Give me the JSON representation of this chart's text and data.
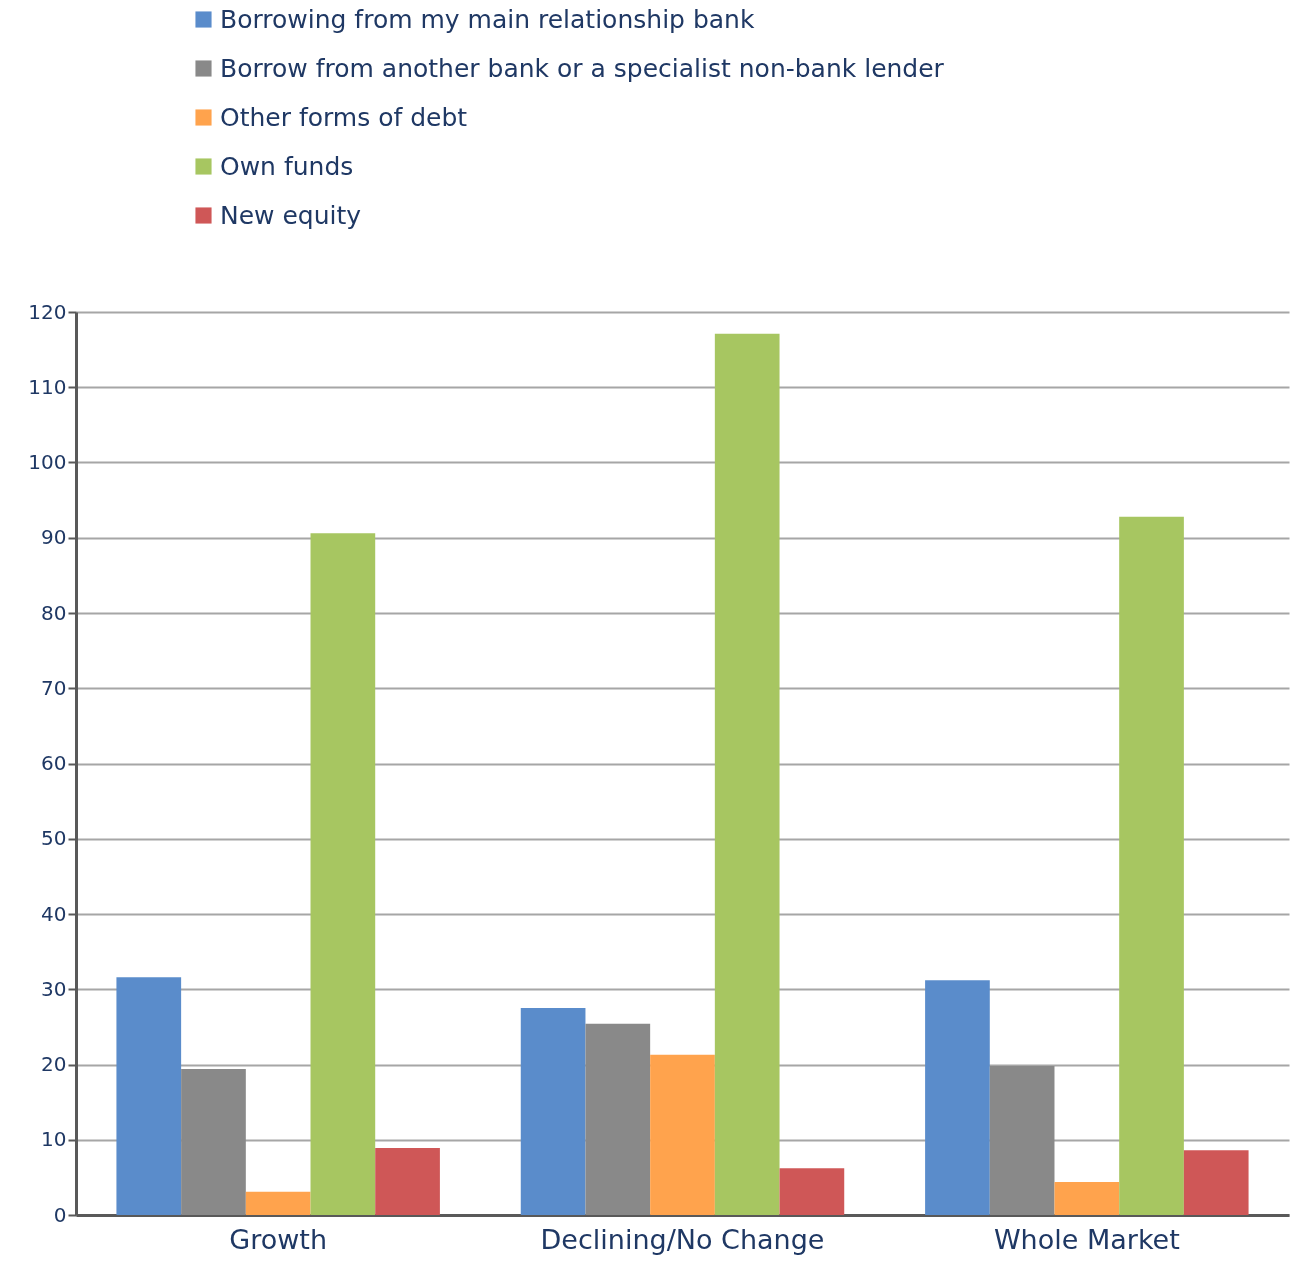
{
  "chart_data": {
    "type": "bar",
    "categories": [
      "Growth",
      "Declining/No Change",
      "Whole Market"
    ],
    "series": [
      {
        "name": "Borrowing from my main relationship bank",
        "color": "#5a8ccb",
        "values": [
          31.6,
          27.5,
          31.2
        ]
      },
      {
        "name": "Borrow from another bank or a specialist non-bank lender",
        "color": "#898989",
        "values": [
          19.4,
          25.4,
          19.8
        ]
      },
      {
        "name": "Other forms of debt",
        "color": "#ffa34d",
        "values": [
          3.1,
          21.3,
          4.4
        ]
      },
      {
        "name": "Own funds",
        "color": "#a7c661",
        "values": [
          90.6,
          117.1,
          92.8
        ]
      },
      {
        "name": "New equity",
        "color": "#cf5757",
        "values": [
          8.9,
          6.2,
          8.6
        ]
      }
    ],
    "ylim": [
      0,
      120
    ],
    "yticks": [
      0,
      10,
      20,
      30,
      40,
      50,
      60,
      70,
      80,
      90,
      100,
      110,
      120
    ],
    "grid": "y",
    "legend": "top"
  }
}
